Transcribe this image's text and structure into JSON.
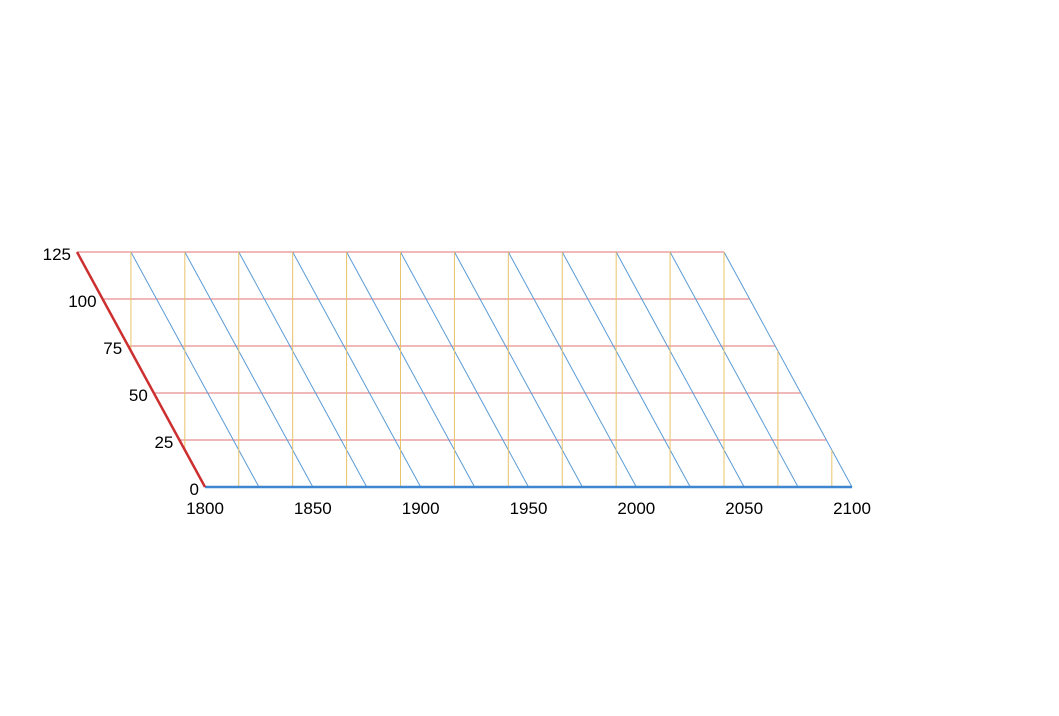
{
  "chart_data": {
    "type": "ternary-grid",
    "title": "",
    "x_axis": {
      "ticks": [
        1800,
        1850,
        1900,
        1950,
        2000,
        2050,
        2100
      ],
      "range": [
        1800,
        2100
      ],
      "grid_step": 25
    },
    "y_axis": {
      "ticks": [
        0,
        25,
        50,
        75,
        100,
        125
      ],
      "range": [
        0,
        125
      ],
      "grid_step": 25
    },
    "grid": true,
    "colors": {
      "horizontal_grid": "#e07070",
      "left_diagonal_grid": "#5b9bd5",
      "right_diagonal_grid": "#e8c36a",
      "x_axis_line": "#3f86d0",
      "y_axis_line": "#cc2f2f",
      "tick_text": "#000000"
    }
  }
}
